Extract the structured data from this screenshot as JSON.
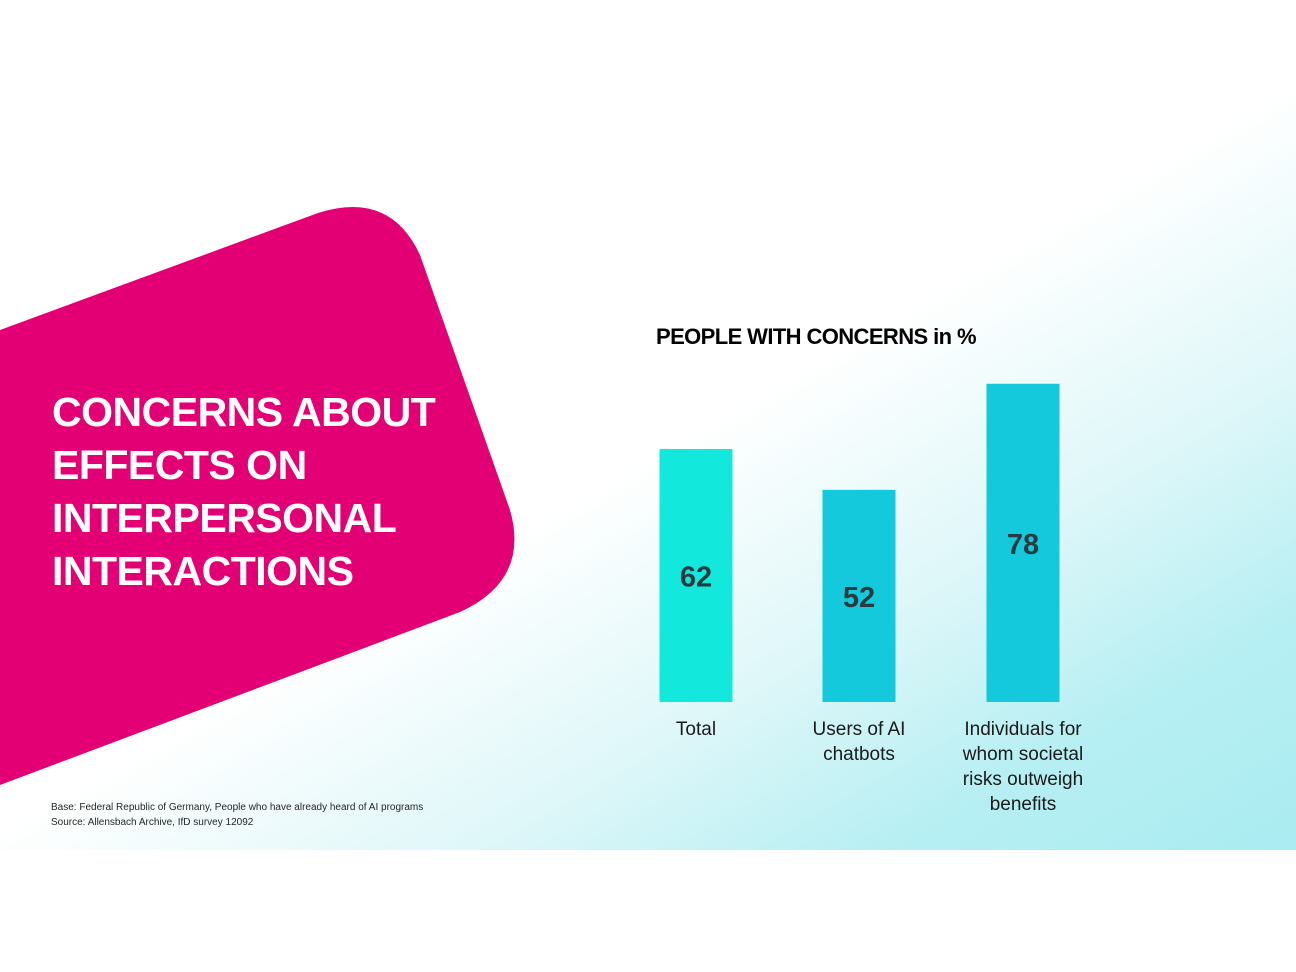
{
  "headline": [
    "CONCERNS ABOUT",
    "EFFECTS ON",
    "INTERPERSONAL",
    "INTERACTIONS"
  ],
  "footnote": {
    "base": "Base: Federal Republic of Germany, People who have already heard of AI programs",
    "source": "Source: Allensbach Archive, IfD survey 12092"
  },
  "colors": {
    "magenta": "#e20074",
    "bar_total": "#13e8dd",
    "bar_other": "#13c9db",
    "value_label": "#2b3a40"
  },
  "chart_data": {
    "type": "bar",
    "title": "PEOPLE WITH CONCERNS in %",
    "xlabel": "",
    "ylabel": "",
    "categories": [
      [
        "Total"
      ],
      [
        "Users of AI",
        "chatbots"
      ],
      [
        "Individuals for",
        "whom societal",
        "risks outweigh",
        "benefits"
      ]
    ],
    "values": [
      62,
      52,
      78
    ],
    "ylim": [
      0,
      100
    ],
    "grid": false,
    "legend": "none"
  }
}
